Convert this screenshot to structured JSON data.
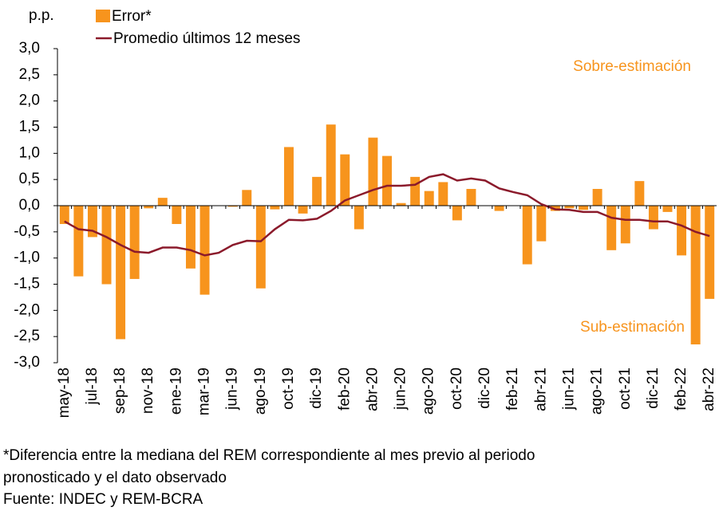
{
  "chart_data": {
    "type": "bar_line",
    "y_label": "p.p.",
    "categories": [
      "may-18",
      null,
      "jul-18",
      null,
      "sep-18",
      null,
      "nov-18",
      null,
      "ene-19",
      null,
      "mar-19",
      null,
      "jun-19",
      null,
      "ago-19",
      null,
      "oct-19",
      null,
      "dic-19",
      null,
      "feb-20",
      null,
      "abr-20",
      null,
      "jun-20",
      null,
      "ago-20",
      null,
      "oct-20",
      null,
      "dic-20",
      null,
      "feb-21",
      null,
      "abr-21",
      null,
      "jun-21",
      null,
      "ago-21",
      null,
      "oct-21",
      null,
      "dic-21",
      null,
      "feb-22",
      null,
      "abr-22"
    ],
    "series": [
      {
        "name": "Error*",
        "type": "bar",
        "color": "#f7941d",
        "values": [
          -0.35,
          -1.35,
          -0.6,
          -1.5,
          -2.55,
          -1.4,
          -0.05,
          0.15,
          -0.35,
          -1.2,
          -1.7,
          null,
          -0.02,
          0.3,
          -1.58,
          -0.07,
          1.12,
          -0.15,
          0.55,
          1.55,
          0.98,
          -0.45,
          1.3,
          0.95,
          0.05,
          0.55,
          0.28,
          0.45,
          -0.28,
          0.32,
          0,
          -0.1,
          0,
          -1.12,
          -0.68,
          -0.1,
          -0.05,
          -0.08,
          0.32,
          -0.85,
          -0.72,
          0.47,
          -0.45,
          -0.12,
          -0.95,
          -2.65,
          -1.78
        ]
      },
      {
        "name": "Promedio últimos 12 meses",
        "type": "line",
        "color": "#8b1a2b",
        "values": [
          -0.3,
          -0.45,
          -0.48,
          -0.6,
          -0.75,
          -0.88,
          -0.9,
          -0.8,
          -0.8,
          -0.85,
          -0.95,
          -0.9,
          -0.75,
          -0.67,
          -0.68,
          -0.45,
          -0.27,
          -0.28,
          -0.25,
          -0.1,
          0.1,
          0.2,
          0.3,
          0.38,
          0.38,
          0.4,
          0.55,
          0.6,
          0.48,
          0.52,
          0.48,
          0.33,
          0.26,
          0.2,
          0.03,
          -0.07,
          -0.08,
          -0.12,
          -0.12,
          -0.23,
          -0.27,
          -0.27,
          -0.3,
          -0.3,
          -0.38,
          -0.5,
          -0.58
        ]
      }
    ],
    "ylim": [
      -3,
      3
    ],
    "yticks": [
      {
        "value": 3,
        "label": "3,0"
      },
      {
        "value": 2.5,
        "label": "2,5"
      },
      {
        "value": 2,
        "label": "2,0"
      },
      {
        "value": 1.5,
        "label": "1,5"
      },
      {
        "value": 1,
        "label": "1,0"
      },
      {
        "value": 0.5,
        "label": "0,5"
      },
      {
        "value": 0,
        "label": "0,0"
      },
      {
        "value": -0.5,
        "label": "-0,5"
      },
      {
        "value": -1,
        "label": "-1,0"
      },
      {
        "value": -1.5,
        "label": "-1,5"
      },
      {
        "value": -2,
        "label": "-2,0"
      },
      {
        "value": -2.5,
        "label": "-2,5"
      },
      {
        "value": -3,
        "label": "-3,0"
      }
    ],
    "annotations": [
      "Sobre-estimación",
      "Sub-estimación"
    ],
    "footnotes": [
      "*Diferencia entre la mediana del REM correspondiente al mes previo al periodo",
      "pronosticado y el dato observado",
      "Fuente: INDEC y REM-BCRA"
    ]
  }
}
